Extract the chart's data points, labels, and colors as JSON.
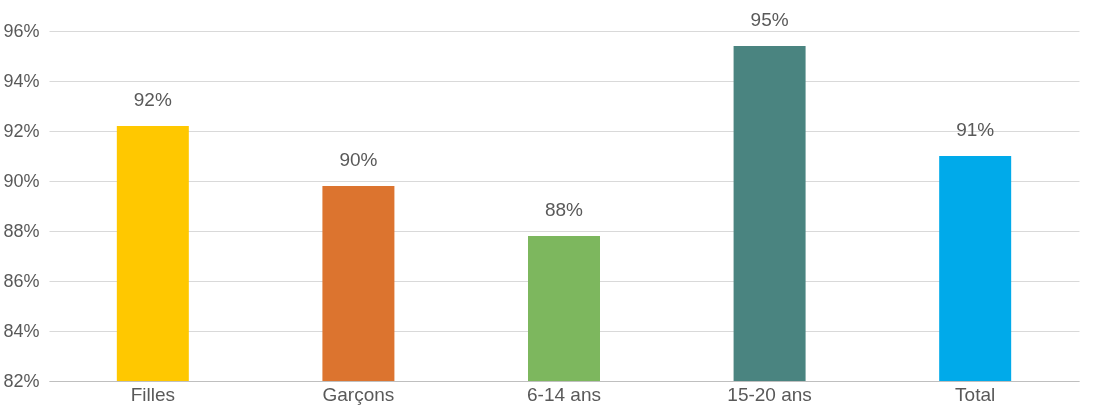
{
  "chart_data": {
    "type": "bar",
    "categories": [
      "Filles",
      "Garçons",
      "6-14 ans",
      "15-20 ans",
      "Total"
    ],
    "values": [
      92.2,
      89.8,
      87.8,
      95.4,
      91.0
    ],
    "colors": [
      "#ffc800",
      "#dc742f",
      "#7db75e",
      "#4a8480",
      "#00aaea"
    ],
    "value_labels": [
      "92%",
      "90%",
      "88%",
      "95%",
      "91%"
    ],
    "ylim": [
      82,
      96
    ],
    "yticks": [
      {
        "value": 82,
        "label": "82%"
      },
      {
        "value": 84,
        "label": "84%"
      },
      {
        "value": 86,
        "label": "86%"
      },
      {
        "value": 88,
        "label": "88%"
      },
      {
        "value": 90,
        "label": "90%"
      },
      {
        "value": 92,
        "label": "92%"
      },
      {
        "value": 94,
        "label": "94%"
      },
      {
        "value": 96,
        "label": "96%"
      }
    ],
    "grid": "y"
  }
}
